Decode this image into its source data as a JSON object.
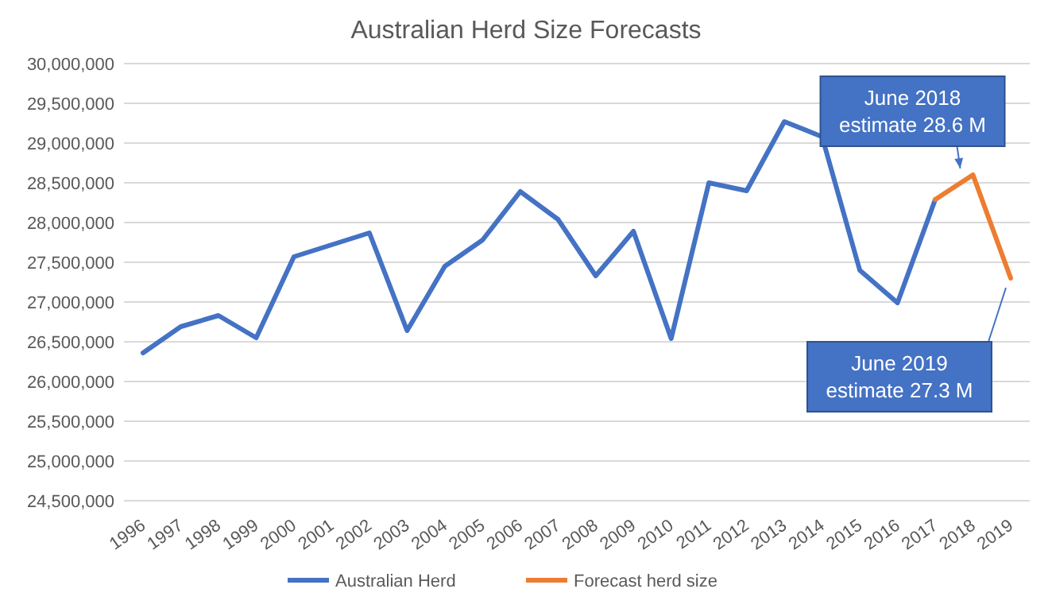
{
  "chart_data": {
    "type": "line",
    "title": "Australian Herd Size Forecasts",
    "categories": [
      "1996",
      "1997",
      "1998",
      "1999",
      "2000",
      "2001",
      "2002",
      "2003",
      "2004",
      "2005",
      "2006",
      "2007",
      "2008",
      "2009",
      "2010",
      "2011",
      "2012",
      "2013",
      "2014",
      "2015",
      "2016",
      "2017",
      "2018",
      "2019"
    ],
    "series": [
      {
        "name": "Australian Herd",
        "color": "#4472c4",
        "values": [
          26360000,
          26690000,
          26830000,
          26550000,
          27570000,
          27720000,
          27870000,
          26640000,
          27450000,
          27780000,
          28390000,
          28040000,
          27330000,
          27890000,
          26540000,
          28500000,
          28400000,
          29270000,
          29080000,
          27400000,
          26990000,
          28290000,
          null,
          null
        ]
      },
      {
        "name": "Forecast herd size",
        "color": "#ed7d31",
        "values": [
          null,
          null,
          null,
          null,
          null,
          null,
          null,
          null,
          null,
          null,
          null,
          null,
          null,
          null,
          null,
          null,
          null,
          null,
          null,
          null,
          null,
          28290000,
          28600000,
          27300000
        ]
      }
    ],
    "ylim": [
      24500000,
      30000000
    ],
    "yticks": [
      {
        "value": 24500000,
        "label": "24,500,000"
      },
      {
        "value": 25000000,
        "label": "25,000,000"
      },
      {
        "value": 25500000,
        "label": "25,500,000"
      },
      {
        "value": 26000000,
        "label": "26,000,000"
      },
      {
        "value": 26500000,
        "label": "26,500,000"
      },
      {
        "value": 27000000,
        "label": "27,000,000"
      },
      {
        "value": 27500000,
        "label": "27,500,000"
      },
      {
        "value": 28000000,
        "label": "28,000,000"
      },
      {
        "value": 28500000,
        "label": "28,500,000"
      },
      {
        "value": 29000000,
        "label": "29,000,000"
      },
      {
        "value": 29500000,
        "label": "29,500,000"
      },
      {
        "value": 30000000,
        "label": "30,000,000"
      }
    ],
    "grid": "y",
    "legend": "bottom",
    "marker": "none",
    "line_style": "solid",
    "annotations": [
      {
        "text": "June 2018\nestimate 28.6 M",
        "x": "2018",
        "y": 28600000
      },
      {
        "text": "June 2019\nestimate 27.3 M",
        "x": "2019",
        "y": 27300000
      }
    ]
  }
}
